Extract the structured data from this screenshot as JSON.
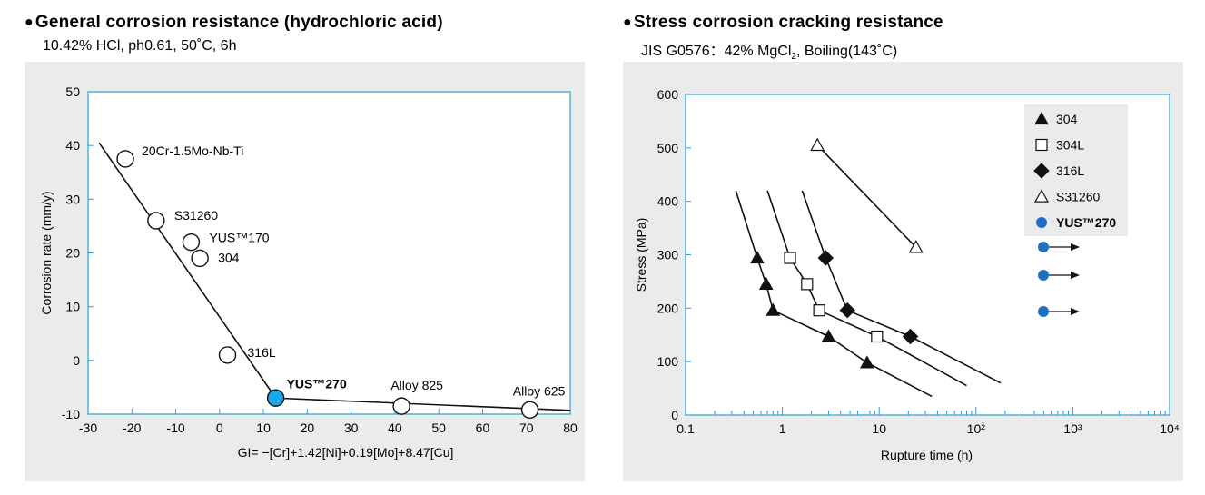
{
  "left": {
    "title": "General corrosion resistance (hydrochloric acid)",
    "subtitle": "10.42% HCl, ph0.61, 50˚C, 6h"
  },
  "right": {
    "title": "Stress corrosion cracking resistance",
    "subtitle_pre": "JIS G0576：42% MgCl",
    "subtitle_sub": "2",
    "subtitle_post": ", Boiling(143˚C)"
  },
  "colors": {
    "accent": "#1aa7e8",
    "frame": "#2a9fd6",
    "right_marker": "#1f6fc4",
    "panel_bg": "#ebebeb"
  },
  "chart_data": [
    {
      "type": "scatter",
      "title": "General corrosion resistance (hydrochloric acid)",
      "xlabel": "GI= −[Cr]+1.42[Ni]+0.19[Mo]+8.47[Cu]",
      "ylabel": "Corrosion rate (mm/y)",
      "xlim": [
        -30,
        80
      ],
      "ylim": [
        -10,
        50
      ],
      "xticks": [
        "-30",
        "-20",
        "-10",
        "0",
        "10",
        "20",
        "30",
        "40",
        "50",
        "60",
        "70",
        "80"
      ],
      "yticks": [
        "-10",
        "0",
        "10",
        "20",
        "30",
        "40",
        "50"
      ],
      "points": [
        {
          "label": "20Cr-1.5Mo-Nb-Ti",
          "x": -21.5,
          "y": 37.5
        },
        {
          "label": "S31260",
          "x": -14.5,
          "y": 26
        },
        {
          "label": "YUS™170",
          "x": -6.5,
          "y": 22
        },
        {
          "label": "304",
          "x": -4.5,
          "y": 19
        },
        {
          "label": "316L",
          "x": 1.8,
          "y": 1
        },
        {
          "label": "YUS™270",
          "x": 12.8,
          "y": -7,
          "highlight": true
        },
        {
          "label": "Alloy 825",
          "x": 41.5,
          "y": -8.5
        },
        {
          "label": "Alloy 625",
          "x": 70.8,
          "y": -9.2
        }
      ],
      "fit_lines": [
        [
          [
            -27.5,
            40.5
          ],
          [
            12.8,
            -7
          ]
        ],
        [
          [
            12.8,
            -7
          ],
          [
            80,
            -9.3
          ]
        ]
      ]
    },
    {
      "type": "scatter",
      "title": "Stress corrosion cracking resistance",
      "xlabel": "Rupture time (h)",
      "ylabel": "Stress (MPa)",
      "xscale": "log",
      "xlim": [
        0.1,
        10000
      ],
      "ylim": [
        0,
        600
      ],
      "xticks": [
        "0.1",
        "1",
        "10",
        "10²",
        "10³",
        "10⁴"
      ],
      "yticks": [
        "0",
        "100",
        "200",
        "300",
        "400",
        "500",
        "600"
      ],
      "legend_position": "top-right",
      "series": [
        {
          "name": "304",
          "marker": "filled-triangle",
          "points": [
            [
              0.55,
              294
            ],
            [
              0.68,
              245
            ],
            [
              0.8,
              196
            ],
            [
              3.0,
              147
            ],
            [
              7.5,
              98
            ]
          ],
          "curve": [
            [
              0.33,
              420
            ],
            [
              0.55,
              294
            ],
            [
              0.68,
              245
            ],
            [
              0.8,
              196
            ],
            [
              3.0,
              147
            ],
            [
              7.5,
              98
            ],
            [
              35,
              35
            ]
          ]
        },
        {
          "name": "304L",
          "marker": "open-square",
          "points": [
            [
              1.2,
              294
            ],
            [
              1.8,
              245
            ],
            [
              2.4,
              196
            ],
            [
              9.5,
              147
            ]
          ],
          "curve": [
            [
              0.7,
              420
            ],
            [
              1.2,
              294
            ],
            [
              1.8,
              245
            ],
            [
              2.4,
              196
            ],
            [
              9.5,
              147
            ],
            [
              80,
              55
            ]
          ]
        },
        {
          "name": "316L",
          "marker": "filled-diamond",
          "points": [
            [
              2.8,
              294
            ],
            [
              4.7,
              196
            ],
            [
              21,
              147
            ]
          ],
          "curve": [
            [
              1.6,
              420
            ],
            [
              2.8,
              294
            ],
            [
              4.7,
              196
            ],
            [
              21,
              147
            ],
            [
              180,
              60
            ]
          ]
        },
        {
          "name": "S31260",
          "marker": "open-triangle",
          "points": [
            [
              2.3,
              505
            ],
            [
              24,
              314
            ]
          ],
          "curve": [
            [
              2.3,
              505
            ],
            [
              24,
              314
            ]
          ]
        },
        {
          "name": "YUS™270",
          "marker": "filled-circle",
          "points": []
        }
      ],
      "legend_arrows": 3
    }
  ]
}
